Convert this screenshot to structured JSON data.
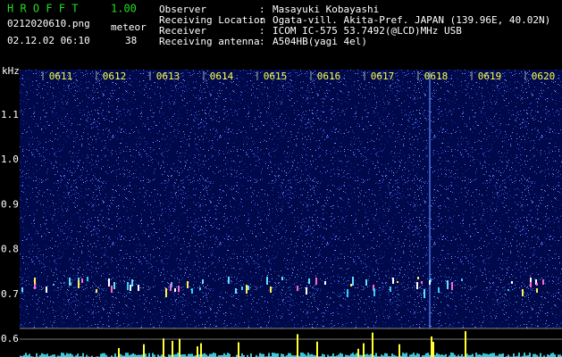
{
  "header": {
    "app": "H R O F F T",
    "version": "1.00",
    "file": "0212020610.png",
    "datetime": "02.12.02 06:10",
    "count_label": "meteor",
    "count": "38"
  },
  "info": {
    "separator": ":",
    "rows": [
      {
        "label": "Observer",
        "value": "Masayuki Kobayashi"
      },
      {
        "label": "Receiving Location",
        "value": "Ogata-vill. Akita-Pref. JAPAN (139.96E, 40.02N)"
      },
      {
        "label": "Receiver",
        "value": "ICOM IC-575 53.7492(@LCD)MHz USB"
      },
      {
        "label": "Receiving antenna",
        "value": "A504HB(yagi 4el)"
      }
    ]
  },
  "axis": {
    "unit": "kHz",
    "y_labels": [
      "1.1",
      "1.0",
      "0.9",
      "0.8",
      "0.7",
      "0.6"
    ],
    "x_labels": [
      "0611",
      "0612",
      "0613",
      "0614",
      "0615",
      "0616",
      "0617",
      "0618",
      "0619",
      "0620"
    ]
  }
}
